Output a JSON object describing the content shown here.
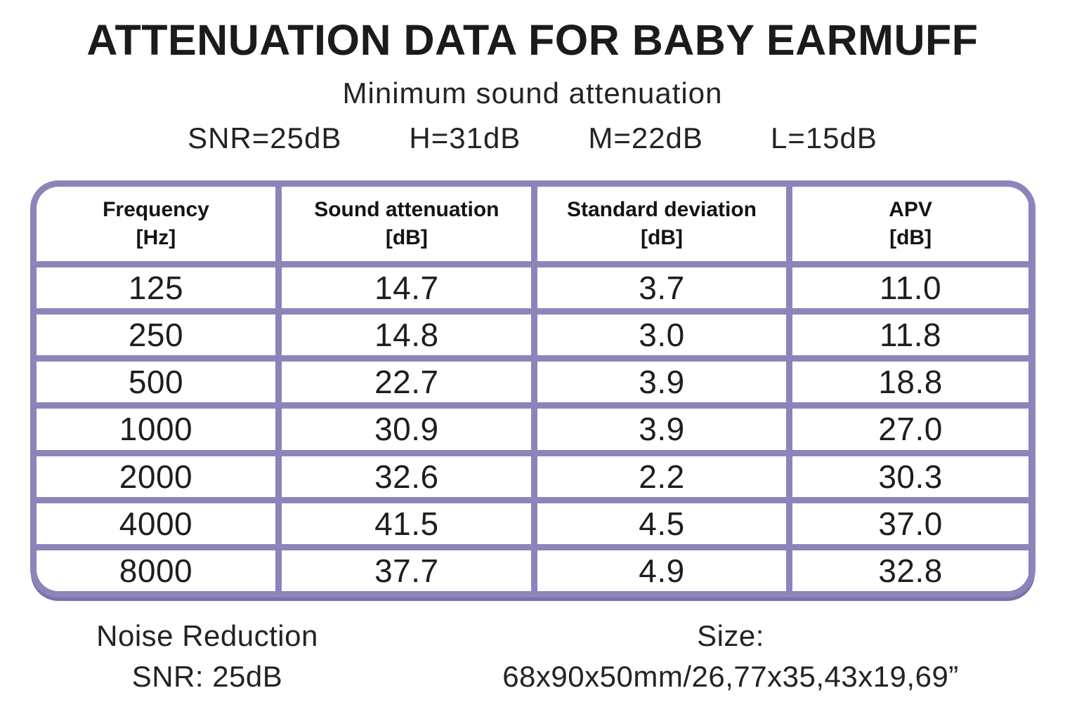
{
  "chart_data": {
    "type": "table",
    "title": "ATTENUATION DATA FOR BABY EARMUFF",
    "subtitle": "Minimum sound attenuation",
    "summary_values": [
      "SNR=25dB",
      "H=31dB",
      "M=22dB",
      "L=15dB"
    ],
    "columns": [
      {
        "label": "Frequency",
        "unit": "[Hz]"
      },
      {
        "label": "Sound attenuation",
        "unit": "[dB]"
      },
      {
        "label": "Standard deviation",
        "unit": "[dB]"
      },
      {
        "label": "APV",
        "unit": "[dB]"
      }
    ],
    "rows": [
      [
        "125",
        "14.7",
        "3.7",
        "11.0"
      ],
      [
        "250",
        "14.8",
        "3.0",
        "11.8"
      ],
      [
        "500",
        "22.7",
        "3.9",
        "18.8"
      ],
      [
        "1000",
        "30.9",
        "3.9",
        "27.0"
      ],
      [
        "2000",
        "32.6",
        "2.2",
        "30.3"
      ],
      [
        "4000",
        "41.5",
        "4.5",
        "37.0"
      ],
      [
        "8000",
        "37.7",
        "4.9",
        "32.8"
      ]
    ]
  },
  "footer": {
    "noise_reduction": [
      "Noise Reduction",
      "SNR: 25dB"
    ],
    "size": [
      "Size:",
      "68x90x50mm/26,77x35,43x19,69”"
    ]
  },
  "colors": {
    "table_border": "#8c84ba",
    "table_border_shadow": "#7b72a9",
    "text": "#1b1b1b",
    "background": "#ffffff"
  }
}
